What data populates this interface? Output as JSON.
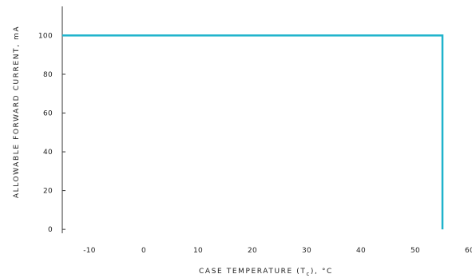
{
  "chart_data": {
    "type": "line",
    "title": "",
    "xlabel": "CASE TEMPERATURE (T",
    "xlabel_subscript": "c",
    "xlabel_suffix": "), °C",
    "ylabel": "ALLOWABLE FORWARD CURRENT, mA",
    "xlim": [
      -15,
      60
    ],
    "ylim": [
      -2,
      115
    ],
    "x_ticks": [
      -10,
      0,
      10,
      20,
      30,
      40,
      50,
      60
    ],
    "y_ticks": [
      0,
      20,
      40,
      60,
      80,
      100
    ],
    "grid": false,
    "legend": "none",
    "series": [
      {
        "color": "#1fb3cc",
        "x": [
          -15,
          55,
          55
        ],
        "y": [
          100,
          100,
          0
        ]
      }
    ]
  }
}
